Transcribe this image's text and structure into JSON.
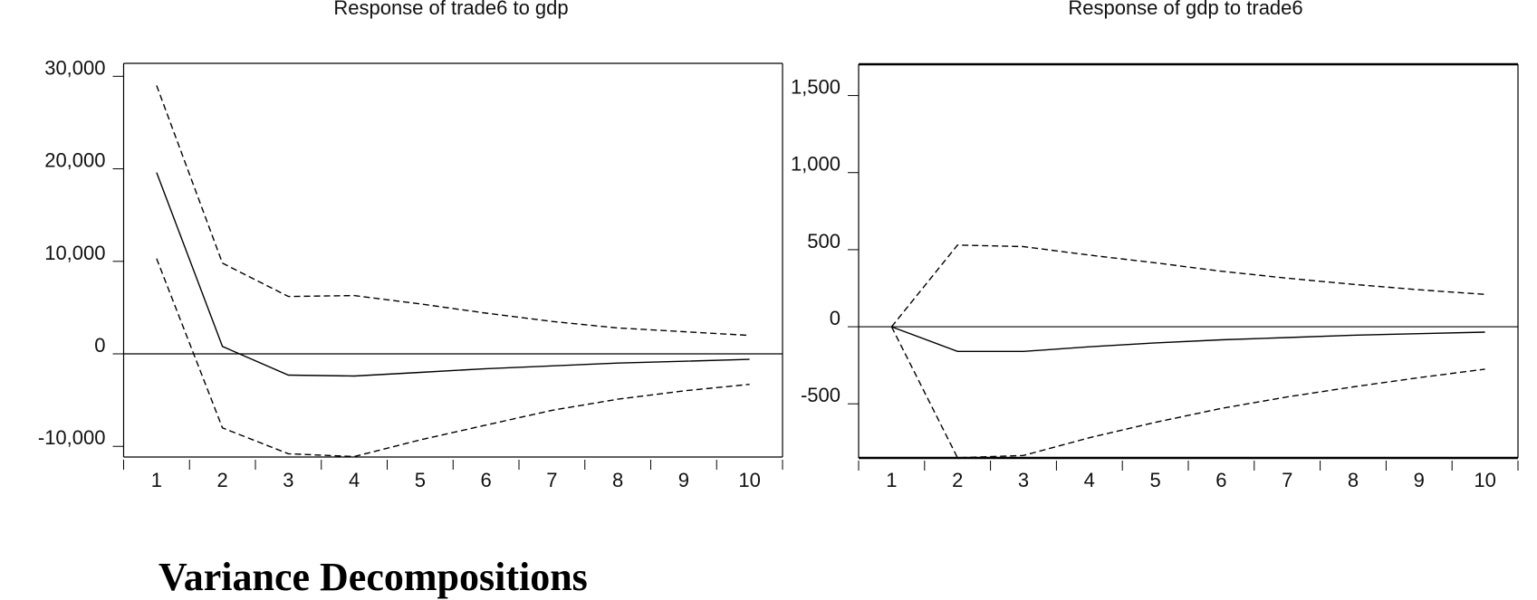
{
  "heading": "Variance Decompositions",
  "chart_data": [
    {
      "type": "line",
      "title": "Response of trade6 to gdp",
      "x": [
        1,
        2,
        3,
        4,
        5,
        6,
        7,
        8,
        9,
        10
      ],
      "xlim": [
        0.5,
        10.5
      ],
      "ylim": [
        -11150,
        31400
      ],
      "yticks": [
        -10000,
        0,
        10000,
        20000,
        30000
      ],
      "ytick_labels": [
        "-10,000",
        "0",
        "10,000",
        "20,000",
        "30,000"
      ],
      "xtick_labels": [
        "1",
        "2",
        "3",
        "4",
        "5",
        "6",
        "7",
        "8",
        "9",
        "10"
      ],
      "zero_line": true,
      "grid": false,
      "series": [
        {
          "role": "response",
          "style": "solid",
          "values": [
            19600,
            800,
            -2300,
            -2400,
            -2000,
            -1600,
            -1300,
            -1000,
            -800,
            -600
          ]
        },
        {
          "role": "upper",
          "style": "dashed",
          "values": [
            29000,
            9800,
            6200,
            6300,
            5400,
            4400,
            3500,
            2800,
            2400,
            2000
          ]
        },
        {
          "role": "lower",
          "style": "dashed",
          "values": [
            10300,
            -8000,
            -10800,
            -11100,
            -9300,
            -7700,
            -6100,
            -4900,
            -4000,
            -3300
          ]
        }
      ]
    },
    {
      "type": "line",
      "title": "Response of gdp to trade6",
      "x": [
        1,
        2,
        3,
        4,
        5,
        6,
        7,
        8,
        9,
        10
      ],
      "xlim": [
        0.5,
        10.5
      ],
      "ylim": [
        -851,
        1703
      ],
      "yticks": [
        -500,
        0,
        500,
        1000,
        1500
      ],
      "ytick_labels": [
        "-500",
        "0",
        "500",
        "1,000",
        "1,500"
      ],
      "xtick_labels": [
        "1",
        "2",
        "3",
        "4",
        "5",
        "6",
        "7",
        "8",
        "9",
        "10"
      ],
      "zero_line": true,
      "grid": false,
      "series": [
        {
          "role": "response",
          "style": "solid",
          "values": [
            0,
            -160,
            -160,
            -130,
            -105,
            -85,
            -70,
            -55,
            -45,
            -35
          ]
        },
        {
          "role": "upper",
          "style": "dashed",
          "values": [
            0,
            530,
            520,
            465,
            415,
            360,
            315,
            275,
            240,
            210
          ]
        },
        {
          "role": "lower",
          "style": "dashed",
          "values": [
            0,
            -850,
            -835,
            -720,
            -620,
            -530,
            -455,
            -390,
            -330,
            -275
          ]
        }
      ]
    }
  ]
}
